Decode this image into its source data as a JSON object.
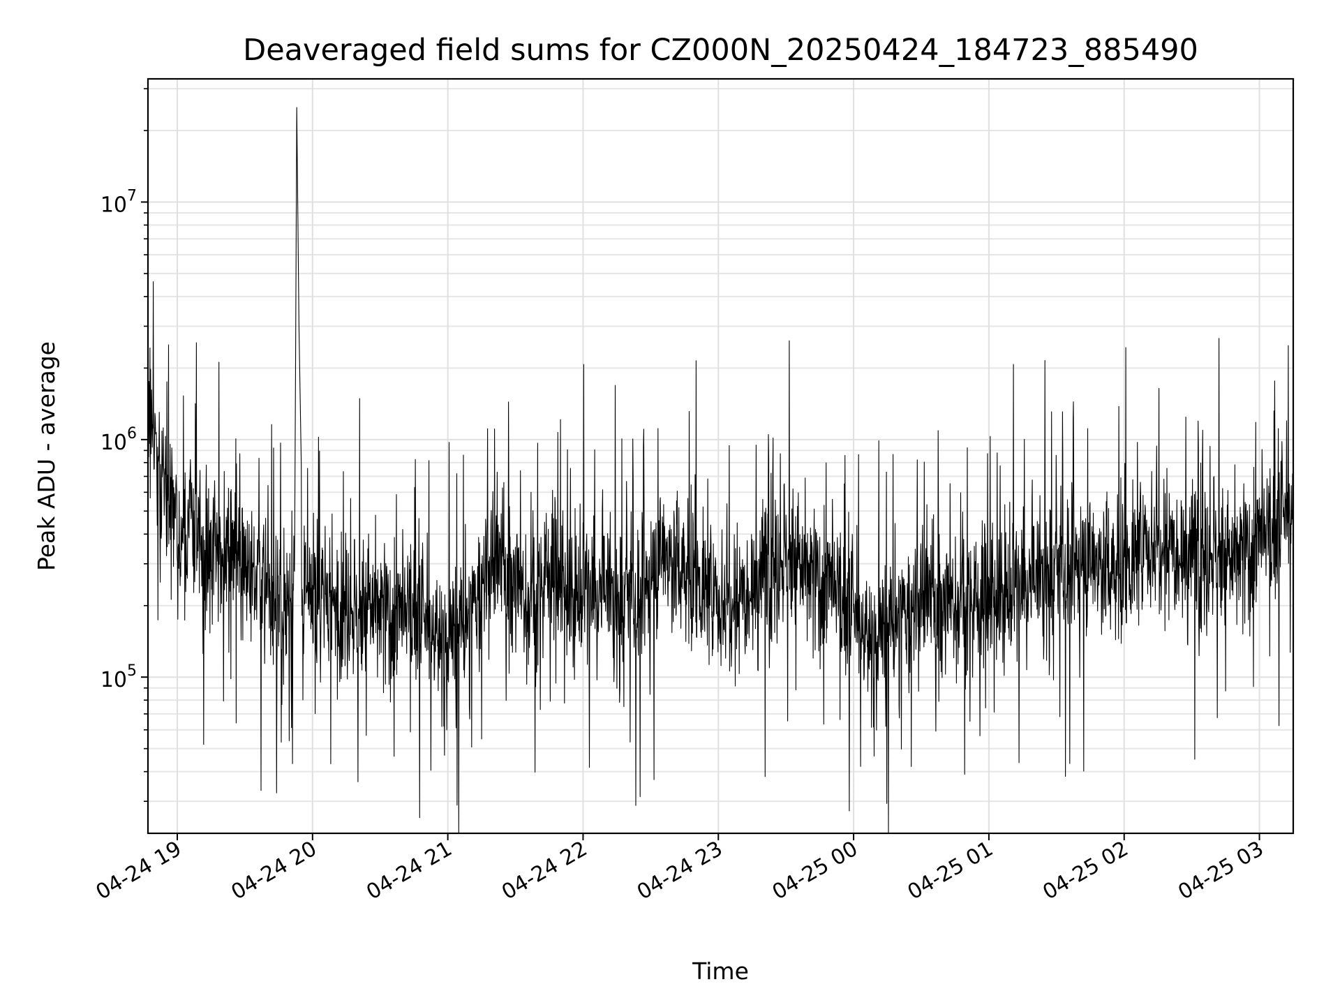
{
  "chart_data": {
    "type": "line",
    "title": "Deaveraged field sums for CZ000N_20250424_184723_885490",
    "xlabel": "Time",
    "ylabel": "Peak ADU - average",
    "x_scale": "time",
    "y_scale": "log",
    "grid": true,
    "legend": "none",
    "xlim": [
      "2025-04-24 18:47",
      "2025-04-25 03:15"
    ],
    "ylim": [
      22000,
      33000000
    ],
    "x_ticks": [
      {
        "value": "2025-04-24 19:00",
        "label": "04-24 19"
      },
      {
        "value": "2025-04-24 20:00",
        "label": "04-24 20"
      },
      {
        "value": "2025-04-24 21:00",
        "label": "04-24 21"
      },
      {
        "value": "2025-04-24 22:00",
        "label": "04-24 22"
      },
      {
        "value": "2025-04-24 23:00",
        "label": "04-24 23"
      },
      {
        "value": "2025-04-25 00:00",
        "label": "04-25 00"
      },
      {
        "value": "2025-04-25 01:00",
        "label": "04-25 01"
      },
      {
        "value": "2025-04-25 02:00",
        "label": "04-25 02"
      },
      {
        "value": "2025-04-25 03:00",
        "label": "04-25 03"
      }
    ],
    "y_ticks": [
      {
        "value": 100000,
        "base": "10",
        "exp": "5"
      },
      {
        "value": 1000000,
        "base": "10",
        "exp": "6"
      },
      {
        "value": 10000000,
        "base": "10",
        "exp": "7"
      }
    ],
    "series": [
      {
        "color": "#000000",
        "points": [
          [
            "2025-04-24 18:47",
            1100000
          ],
          [
            "2025-04-24 18:52",
            900000
          ],
          [
            "2025-04-24 18:57",
            500000
          ],
          [
            "2025-04-24 19:02",
            400000
          ],
          [
            "2025-04-24 19:07",
            450000
          ],
          [
            "2025-04-24 19:12",
            300000
          ],
          [
            "2025-04-24 19:17",
            380000
          ],
          [
            "2025-04-24 19:22",
            350000
          ],
          [
            "2025-04-24 19:27",
            400000
          ],
          [
            "2025-04-24 19:32",
            280000
          ],
          [
            "2025-04-24 19:37",
            260000
          ],
          [
            "2025-04-24 19:42",
            220000
          ],
          [
            "2025-04-24 19:47",
            180000
          ],
          [
            "2025-04-24 19:52",
            250000
          ],
          [
            "2025-04-24 19:53",
            25000000
          ],
          [
            "2025-04-24 19:55",
            200000
          ],
          [
            "2025-04-24 20:00",
            210000
          ],
          [
            "2025-04-24 20:05",
            230000
          ],
          [
            "2025-04-24 20:10",
            200000
          ],
          [
            "2025-04-24 20:15",
            220000
          ],
          [
            "2025-04-24 20:20",
            180000
          ],
          [
            "2025-04-24 20:25",
            200000
          ],
          [
            "2025-04-24 20:30",
            190000
          ],
          [
            "2025-04-24 20:35",
            180000
          ],
          [
            "2025-04-24 20:40",
            170000
          ],
          [
            "2025-04-24 20:45",
            200000
          ],
          [
            "2025-04-24 20:50",
            160000
          ],
          [
            "2025-04-24 20:55",
            150000
          ],
          [
            "2025-04-24 21:00",
            140000
          ],
          [
            "2025-04-24 21:05",
            160000
          ],
          [
            "2025-04-24 21:10",
            170000
          ],
          [
            "2025-04-24 21:15",
            250000
          ],
          [
            "2025-04-24 21:20",
            280000
          ],
          [
            "2025-04-24 21:25",
            300000
          ],
          [
            "2025-04-24 21:30",
            260000
          ],
          [
            "2025-04-24 21:35",
            200000
          ],
          [
            "2025-04-24 21:40",
            230000
          ],
          [
            "2025-04-24 21:45",
            300000
          ],
          [
            "2025-04-24 21:50",
            260000
          ],
          [
            "2025-04-24 21:55",
            220000
          ],
          [
            "2025-04-24 22:00",
            240000
          ],
          [
            "2025-04-24 22:05",
            210000
          ],
          [
            "2025-04-24 22:10",
            230000
          ],
          [
            "2025-04-24 22:15",
            200000
          ],
          [
            "2025-04-24 22:20",
            220000
          ],
          [
            "2025-04-24 22:25",
            190000
          ],
          [
            "2025-04-24 22:30",
            260000
          ],
          [
            "2025-04-24 22:35",
            350000
          ],
          [
            "2025-04-24 22:40",
            300000
          ],
          [
            "2025-04-24 22:45",
            280000
          ],
          [
            "2025-04-24 22:50",
            260000
          ],
          [
            "2025-04-24 22:55",
            230000
          ],
          [
            "2025-04-24 23:00",
            200000
          ],
          [
            "2025-04-24 23:05",
            220000
          ],
          [
            "2025-04-24 23:10",
            240000
          ],
          [
            "2025-04-24 23:15",
            260000
          ],
          [
            "2025-04-24 23:20",
            280000
          ],
          [
            "2025-04-24 23:25",
            300000
          ],
          [
            "2025-04-24 23:30",
            330000
          ],
          [
            "2025-04-24 23:35",
            300000
          ],
          [
            "2025-04-24 23:40",
            270000
          ],
          [
            "2025-04-24 23:45",
            250000
          ],
          [
            "2025-04-24 23:50",
            230000
          ],
          [
            "2025-04-24 23:55",
            210000
          ],
          [
            "2025-04-25 00:00",
            180000
          ],
          [
            "2025-04-25 00:05",
            150000
          ],
          [
            "2025-04-25 00:10",
            140000
          ],
          [
            "2025-04-25 00:15",
            160000
          ],
          [
            "2025-04-25 00:20",
            170000
          ],
          [
            "2025-04-25 00:25",
            190000
          ],
          [
            "2025-04-25 00:30",
            200000
          ],
          [
            "2025-04-25 00:35",
            220000
          ],
          [
            "2025-04-25 00:40",
            210000
          ],
          [
            "2025-04-25 00:45",
            200000
          ],
          [
            "2025-04-25 00:50",
            220000
          ],
          [
            "2025-04-25 00:55",
            210000
          ],
          [
            "2025-04-25 01:00",
            220000
          ],
          [
            "2025-04-25 01:05",
            230000
          ],
          [
            "2025-04-25 01:10",
            240000
          ],
          [
            "2025-04-25 01:15",
            230000
          ],
          [
            "2025-04-25 01:20",
            250000
          ],
          [
            "2025-04-25 01:25",
            260000
          ],
          [
            "2025-04-25 01:30",
            280000
          ],
          [
            "2025-04-25 01:35",
            260000
          ],
          [
            "2025-04-25 01:40",
            300000
          ],
          [
            "2025-04-25 01:45",
            320000
          ],
          [
            "2025-04-25 01:50",
            300000
          ],
          [
            "2025-04-25 01:55",
            280000
          ],
          [
            "2025-04-25 02:00",
            290000
          ],
          [
            "2025-04-25 02:05",
            320000
          ],
          [
            "2025-04-25 02:10",
            350000
          ],
          [
            "2025-04-25 02:15",
            380000
          ],
          [
            "2025-04-25 02:20",
            400000
          ],
          [
            "2025-04-25 02:25",
            360000
          ],
          [
            "2025-04-25 02:30",
            340000
          ],
          [
            "2025-04-25 02:35",
            320000
          ],
          [
            "2025-04-25 02:40",
            350000
          ],
          [
            "2025-04-25 02:45",
            300000
          ],
          [
            "2025-04-25 02:50",
            320000
          ],
          [
            "2025-04-25 02:55",
            340000
          ],
          [
            "2025-04-25 03:00",
            360000
          ],
          [
            "2025-04-25 03:05",
            400000
          ],
          [
            "2025-04-25 03:10",
            450000
          ],
          [
            "2025-04-25 03:15",
            500000
          ]
        ]
      }
    ]
  }
}
